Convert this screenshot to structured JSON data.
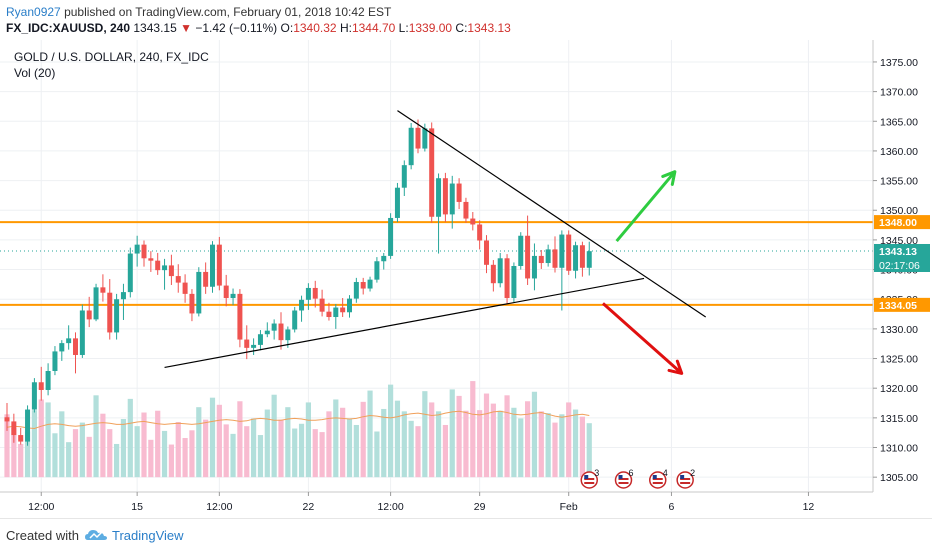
{
  "header": {
    "author": "Ryan0927",
    "published_text": "published on TradingView.com, February 01, 2018 10:42 EST",
    "symbol": "FX_IDC:XAUUSD, 240",
    "last": "1343.15",
    "change_arrow": "▼",
    "change": "−1.42 (−0.11%)",
    "open_label": "O:",
    "open": "1340.32",
    "high_label": "H:",
    "high": "1344.70",
    "low_label": "L:",
    "low": "1339.00",
    "close_label": "C:",
    "close": "1343.13"
  },
  "chart_data": {
    "type": "candlestick",
    "title": "GOLD / U.S. DOLLAR, 240, FX_IDC",
    "volume_label": "Vol (20)",
    "y_ticks": [
      1305,
      1310,
      1315,
      1320,
      1325,
      1330,
      1335,
      1340,
      1345,
      1350,
      1355,
      1360,
      1365,
      1370,
      1375
    ],
    "y_tick_labels": [
      "1305.00",
      "1310.00",
      "1315.00",
      "1320.00",
      "1325.00",
      "1330.00",
      "1335.00",
      "1340.00",
      "1345.00",
      "1350.00",
      "1355.00",
      "1360.00",
      "1365.00",
      "1370.00",
      "1375.00"
    ],
    "ylim": [
      1302.5,
      1378.7
    ],
    "x_ticks": [
      {
        "label": "12:00",
        "i": 5
      },
      {
        "label": "15",
        "i": 19
      },
      {
        "label": "12:00",
        "i": 31
      },
      {
        "label": "22",
        "i": 44
      },
      {
        "label": "12:00",
        "i": 56
      },
      {
        "label": "29",
        "i": 69
      },
      {
        "label": "Feb",
        "i": 82
      },
      {
        "label": "6",
        "i": 97
      },
      {
        "label": "12",
        "i": 117
      }
    ],
    "horizontal_lines": [
      {
        "value": 1348.0,
        "label": "1348.00",
        "color": "#ff9800"
      },
      {
        "value": 1334.05,
        "label": "1334.05",
        "color": "#ff9800"
      }
    ],
    "last_price": {
      "value": 1343.13,
      "label": "1343.13",
      "countdown": "02:17:06",
      "color": "#26a69a"
    },
    "trend_lines": [
      {
        "from": {
          "i": 23,
          "v": 1323.5
        },
        "to": {
          "i": 93,
          "v": 1338.5
        },
        "color": "#000000"
      },
      {
        "from": {
          "i": 57,
          "v": 1366.8
        },
        "to": {
          "i": 102,
          "v": 1332.0
        },
        "color": "#000000"
      }
    ],
    "arrows": [
      {
        "from": {
          "i": 89,
          "v": 1344.8
        },
        "to": {
          "i": 97.5,
          "v": 1356.5
        },
        "color": "#2ecc40"
      },
      {
        "from": {
          "i": 87,
          "v": 1334.3
        },
        "to": {
          "i": 98.5,
          "v": 1322.5
        },
        "color": "#e01010"
      }
    ],
    "event_badges": [
      {
        "i": 85,
        "label": "3"
      },
      {
        "i": 90,
        "label": "6"
      },
      {
        "i": 95,
        "label": "4"
      },
      {
        "i": 99,
        "label": "2"
      }
    ],
    "candles": [
      [
        1315.1,
        1317.5,
        1312.8,
        1314.4
      ],
      [
        1314.4,
        1315.7,
        1310.8,
        1312.1
      ],
      [
        1312.1,
        1313.3,
        1310.5,
        1311.0
      ],
      [
        1311.0,
        1317.1,
        1310.3,
        1316.4
      ],
      [
        1316.4,
        1321.7,
        1315.9,
        1321.0
      ],
      [
        1321.0,
        1323.6,
        1317.9,
        1319.7
      ],
      [
        1319.7,
        1324.2,
        1318.8,
        1322.9
      ],
      [
        1322.9,
        1327.1,
        1322.2,
        1326.2
      ],
      [
        1326.2,
        1328.1,
        1324.6,
        1327.6
      ],
      [
        1327.6,
        1330.6,
        1326.5,
        1328.4
      ],
      [
        1328.4,
        1329.4,
        1322.5,
        1325.6
      ],
      [
        1325.6,
        1334.1,
        1325.1,
        1333.1
      ],
      [
        1333.1,
        1335.4,
        1330.3,
        1331.6
      ],
      [
        1331.6,
        1337.6,
        1331.3,
        1337.0
      ],
      [
        1337.0,
        1339.2,
        1334.6,
        1336.1
      ],
      [
        1336.1,
        1338.4,
        1328.2,
        1329.4
      ],
      [
        1329.4,
        1335.9,
        1328.2,
        1335.0
      ],
      [
        1335.0,
        1337.6,
        1331.5,
        1336.2
      ],
      [
        1336.2,
        1343.7,
        1335.3,
        1342.7
      ],
      [
        1342.7,
        1345.7,
        1340.5,
        1344.2
      ],
      [
        1344.2,
        1344.9,
        1340.5,
        1341.9
      ],
      [
        1341.9,
        1343.1,
        1339.6,
        1341.5
      ],
      [
        1341.5,
        1342.8,
        1339.1,
        1339.9
      ],
      [
        1339.9,
        1341.8,
        1336.6,
        1340.7
      ],
      [
        1340.7,
        1342.5,
        1337.4,
        1338.9
      ],
      [
        1338.9,
        1340.9,
        1336.1,
        1337.8
      ],
      [
        1337.8,
        1339.2,
        1334.4,
        1335.9
      ],
      [
        1335.9,
        1336.7,
        1331.3,
        1332.6
      ],
      [
        1332.6,
        1340.4,
        1332.1,
        1339.6
      ],
      [
        1339.6,
        1341.2,
        1335.9,
        1337.1
      ],
      [
        1337.1,
        1344.8,
        1336.1,
        1344.2
      ],
      [
        1344.2,
        1345.5,
        1336.5,
        1337.3
      ],
      [
        1337.3,
        1339.1,
        1333.8,
        1335.2
      ],
      [
        1335.2,
        1336.8,
        1334.0,
        1335.9
      ],
      [
        1335.9,
        1336.7,
        1326.9,
        1328.2
      ],
      [
        1328.2,
        1330.6,
        1324.9,
        1326.8
      ],
      [
        1326.8,
        1328.4,
        1325.6,
        1327.3
      ],
      [
        1327.3,
        1329.8,
        1326.4,
        1329.1
      ],
      [
        1329.1,
        1331.1,
        1328.6,
        1329.7
      ],
      [
        1329.7,
        1331.6,
        1328.2,
        1330.9
      ],
      [
        1330.9,
        1332.8,
        1326.5,
        1328.1
      ],
      [
        1328.1,
        1330.4,
        1326.8,
        1329.9
      ],
      [
        1329.9,
        1333.7,
        1329.4,
        1333.1
      ],
      [
        1333.1,
        1335.6,
        1331.2,
        1334.9
      ],
      [
        1334.9,
        1337.7,
        1333.2,
        1336.9
      ],
      [
        1336.9,
        1338.1,
        1333.6,
        1335.1
      ],
      [
        1335.1,
        1336.6,
        1332.1,
        1332.9
      ],
      [
        1332.9,
        1334.4,
        1331.4,
        1332.0
      ],
      [
        1332.0,
        1334.2,
        1330.0,
        1333.6
      ],
      [
        1333.6,
        1335.2,
        1332.0,
        1332.8
      ],
      [
        1332.8,
        1335.7,
        1331.9,
        1335.1
      ],
      [
        1335.1,
        1338.6,
        1334.4,
        1337.9
      ],
      [
        1337.9,
        1338.6,
        1335.8,
        1336.8
      ],
      [
        1336.8,
        1338.8,
        1336.3,
        1338.3
      ],
      [
        1338.3,
        1342.1,
        1337.8,
        1341.4
      ],
      [
        1341.4,
        1342.8,
        1340.0,
        1342.3
      ],
      [
        1342.3,
        1349.5,
        1341.8,
        1348.7
      ],
      [
        1348.7,
        1354.6,
        1348.0,
        1353.8
      ],
      [
        1353.8,
        1358.4,
        1352.4,
        1357.6
      ],
      [
        1357.6,
        1364.7,
        1356.9,
        1363.9
      ],
      [
        1363.9,
        1365.3,
        1359.6,
        1360.4
      ],
      [
        1360.4,
        1364.6,
        1359.9,
        1363.8
      ],
      [
        1363.8,
        1364.8,
        1347.9,
        1348.9
      ],
      [
        1348.9,
        1356.2,
        1342.7,
        1355.4
      ],
      [
        1355.4,
        1356.3,
        1348.0,
        1349.3
      ],
      [
        1349.3,
        1355.8,
        1346.9,
        1354.5
      ],
      [
        1354.5,
        1355.4,
        1350.2,
        1351.4
      ],
      [
        1351.4,
        1352.1,
        1347.9,
        1348.6
      ],
      [
        1348.6,
        1349.7,
        1346.6,
        1347.6
      ],
      [
        1347.6,
        1348.3,
        1343.4,
        1344.9
      ],
      [
        1344.9,
        1345.8,
        1339.4,
        1340.8
      ],
      [
        1340.8,
        1341.6,
        1336.3,
        1337.7
      ],
      [
        1337.7,
        1342.8,
        1337.0,
        1341.9
      ],
      [
        1341.9,
        1342.6,
        1334.3,
        1335.2
      ],
      [
        1335.2,
        1341.2,
        1334.5,
        1340.6
      ],
      [
        1340.6,
        1346.3,
        1340.0,
        1345.7
      ],
      [
        1345.7,
        1349.1,
        1337.4,
        1338.5
      ],
      [
        1338.5,
        1344.4,
        1336.5,
        1342.3
      ],
      [
        1342.3,
        1343.3,
        1340.1,
        1341.1
      ],
      [
        1341.1,
        1344.2,
        1340.5,
        1343.4
      ],
      [
        1343.4,
        1345.6,
        1339.5,
        1340.3
      ],
      [
        1340.3,
        1346.6,
        1333.1,
        1345.9
      ],
      [
        1345.9,
        1346.6,
        1339.1,
        1339.8
      ],
      [
        1339.8,
        1344.7,
        1338.5,
        1344.1
      ],
      [
        1344.1,
        1344.7,
        1338.8,
        1340.3
      ],
      [
        1340.3,
        1344.7,
        1339.0,
        1343.1
      ]
    ],
    "volume_scale": [
      1305.0,
      1322.0
    ],
    "volumes": [
      1315.6,
      1313.3,
      1310.6,
      1312.7,
      1316.3,
      1318.1,
      1317.6,
      1312.4,
      1316.1,
      1310.9,
      1313.1,
      1314.2,
      1311.8,
      1318.8,
      1315.7,
      1313.1,
      1310.6,
      1314.8,
      1318.2,
      1313.6,
      1315.9,
      1311.3,
      1316.2,
      1312.8,
      1310.5,
      1314.3,
      1311.6,
      1312.9,
      1316.8,
      1314.7,
      1318.4,
      1317.2,
      1313.9,
      1312.3,
      1317.8,
      1313.6,
      1314.9,
      1312.1,
      1316.4,
      1318.9,
      1314.7,
      1316.8,
      1313.2,
      1314.0,
      1317.6,
      1313.1,
      1312.6,
      1316.1,
      1318.1,
      1316.7,
      1314.9,
      1313.8,
      1317.7,
      1319.6,
      1312.7,
      1316.5,
      1320.6,
      1317.9,
      1316.1,
      1314.5,
      1313.6,
      1319.5,
      1317.6,
      1316.1,
      1313.8,
      1319.8,
      1318.7,
      1316.2,
      1321.2,
      1316.3,
      1319.1,
      1317.4,
      1316.2,
      1318.8,
      1316.7,
      1314.9,
      1317.8,
      1319.4,
      1316.1,
      1315.8,
      1314.2,
      1315.6,
      1317.6,
      1316.4,
      1315.2,
      1314.1
    ],
    "ma_line": [
      1313.4,
      1313.6,
      1313.5,
      1313.3,
      1313.2,
      1313.6,
      1313.9,
      1314.0,
      1313.9,
      1313.7,
      1313.6,
      1313.7,
      1313.9,
      1314.1,
      1314.2,
      1314.1,
      1313.9,
      1313.9,
      1314.1,
      1314.3,
      1314.4,
      1314.2,
      1314.0,
      1313.9,
      1314.0,
      1314.1,
      1314.0,
      1313.9,
      1314.0,
      1314.2,
      1314.4,
      1314.6,
      1314.7,
      1314.6,
      1314.4,
      1314.5,
      1314.8,
      1314.9,
      1314.8,
      1314.6,
      1314.6,
      1314.8,
      1314.9,
      1314.8,
      1314.6,
      1314.6,
      1314.7,
      1314.9,
      1315.0,
      1314.9,
      1314.8,
      1314.9,
      1315.2,
      1315.4,
      1315.3,
      1315.1,
      1315.0,
      1315.2,
      1315.5,
      1315.7,
      1315.8,
      1315.6,
      1315.4,
      1315.5,
      1315.8,
      1316.0,
      1316.1,
      1315.9,
      1315.6,
      1315.5,
      1315.7,
      1316.0,
      1316.1,
      1315.9,
      1315.6,
      1315.5,
      1315.6,
      1315.8,
      1315.9,
      1315.6,
      1315.3,
      1315.1,
      1315.3,
      1315.5,
      1315.6,
      1315.4
    ],
    "colors": {
      "up": "#26a69a",
      "down": "#ef5350",
      "vol_up": "#b2dfdb",
      "vol_down": "#f8bbd0",
      "ma": "#f0a05a",
      "grid": "#eef0f3"
    }
  },
  "footer": {
    "created_with": "Created with",
    "brand": "TradingView"
  }
}
